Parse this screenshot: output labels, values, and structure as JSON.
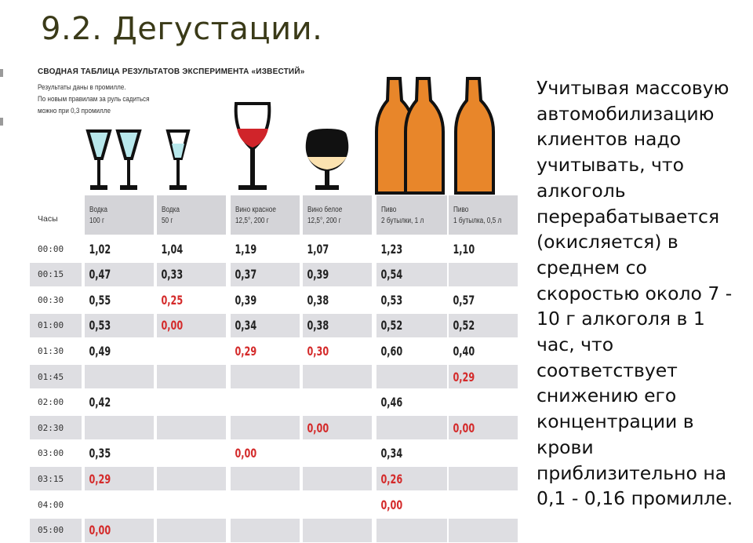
{
  "slide_title": "9.2. Дегустации.",
  "table": {
    "title": "Сводная таблица результатов эксперимента «Известий»",
    "notes": [
      "Результаты даны в промилле.",
      "По новым правилам  за руль садиться",
      "можно при 0,3 промилле"
    ],
    "time_header": "Часы",
    "columns": [
      {
        "name": "Водка",
        "detail": "100 г"
      },
      {
        "name": "Водка",
        "detail": "50 г"
      },
      {
        "name": "Вино красное",
        "detail": "12,5°, 200 г"
      },
      {
        "name": "Вино белое",
        "detail": "12,5°, 200 г"
      },
      {
        "name": "Пиво",
        "detail": "2 бутылки, 1 л"
      },
      {
        "name": "Пиво",
        "detail": "1 бутылка, 0,5 л"
      }
    ],
    "rows": [
      {
        "time": "00:00",
        "values": [
          "1,02",
          "1,04",
          "1,19",
          "1,07",
          "1,23",
          "1,10"
        ],
        "red": [
          false,
          false,
          false,
          false,
          false,
          false
        ]
      },
      {
        "time": "00:15",
        "values": [
          "0,47",
          "0,33",
          "0,37",
          "0,39",
          "0,54",
          ""
        ],
        "red": [
          false,
          false,
          false,
          false,
          false,
          false
        ]
      },
      {
        "time": "00:30",
        "values": [
          "0,55",
          "0,25",
          "0,39",
          "0,38",
          "0,53",
          "0,57"
        ],
        "red": [
          false,
          true,
          false,
          false,
          false,
          false
        ]
      },
      {
        "time": "01:00",
        "values": [
          "0,53",
          "0,00",
          "0,34",
          "0,38",
          "0,52",
          "0,52"
        ],
        "red": [
          false,
          true,
          false,
          false,
          false,
          false
        ]
      },
      {
        "time": "01:30",
        "values": [
          "0,49",
          "",
          "0,29",
          "0,30",
          "0,60",
          "0,40"
        ],
        "red": [
          false,
          false,
          true,
          true,
          false,
          false
        ]
      },
      {
        "time": "01:45",
        "values": [
          "",
          "",
          "",
          "",
          "",
          "0,29"
        ],
        "red": [
          false,
          false,
          false,
          false,
          false,
          true
        ]
      },
      {
        "time": "02:00",
        "values": [
          "0,42",
          "",
          "",
          "",
          "0,46",
          ""
        ],
        "red": [
          false,
          false,
          false,
          false,
          false,
          false
        ]
      },
      {
        "time": "02:30",
        "values": [
          "",
          "",
          "",
          "0,00",
          "",
          "0,00"
        ],
        "red": [
          false,
          false,
          false,
          true,
          false,
          true
        ]
      },
      {
        "time": "03:00",
        "values": [
          "0,35",
          "",
          "0,00",
          "",
          "0,34",
          ""
        ],
        "red": [
          false,
          false,
          true,
          false,
          false,
          false
        ]
      },
      {
        "time": "03:15",
        "values": [
          "0,29",
          "",
          "",
          "",
          "0,26",
          ""
        ],
        "red": [
          true,
          false,
          false,
          false,
          true,
          false
        ]
      },
      {
        "time": "04:00",
        "values": [
          "",
          "",
          "",
          "",
          "0,00",
          ""
        ],
        "red": [
          false,
          false,
          false,
          false,
          true,
          false
        ]
      },
      {
        "time": "05:00",
        "values": [
          "0,00",
          "",
          "",
          "",
          "",
          ""
        ],
        "red": [
          true,
          false,
          false,
          false,
          false,
          false
        ]
      }
    ],
    "icons": [
      "vodka-glass-icon",
      "vodka-glass-icon",
      "vodka-glass-icon",
      "red-wine-glass-icon",
      "cognac-glass-icon",
      "beer-bottle-icon",
      "beer-bottle-icon",
      "beer-bottle-icon"
    ]
  },
  "side_text": "Учитывая массовую автомобилизацию клиентов надо учитывать, что алкоголь перерабатывается (окисляется) в среднем со скоростью около 7 - 10 г алкоголя в 1 час, что соответствует снижению его концентрации в крови приблизительно на 0,1 - 0,16 промилле.",
  "colors": {
    "red_value": "#d42a2a",
    "beer": "#e8862a",
    "wine": "#d0242a",
    "vodka": "#b8e8ec",
    "row_shade": "#dedee2"
  }
}
